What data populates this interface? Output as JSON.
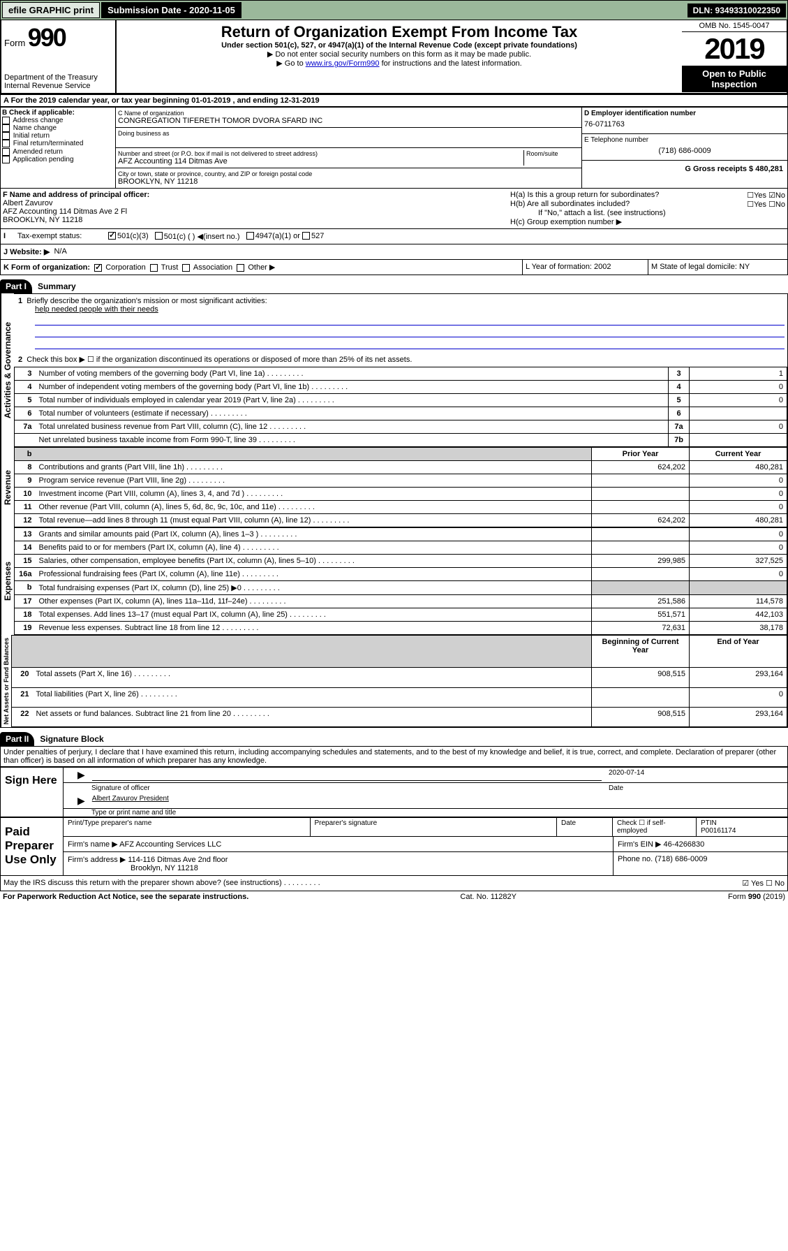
{
  "topbar": {
    "efile": "efile GRAPHIC print",
    "submission_label": "Submission Date - 2020-11-05",
    "dln": "DLN: 93493310022350"
  },
  "header": {
    "form_word": "Form",
    "form_num": "990",
    "dept": "Department of the Treasury",
    "irs": "Internal Revenue Service",
    "title": "Return of Organization Exempt From Income Tax",
    "subtitle": "Under section 501(c), 527, or 4947(a)(1) of the Internal Revenue Code (except private foundations)",
    "warn1": "▶ Do not enter social security numbers on this form as it may be made public.",
    "warn2_pre": "▶ Go to ",
    "warn2_link": "www.irs.gov/Form990",
    "warn2_post": " for instructions and the latest information.",
    "omb": "OMB No. 1545-0047",
    "year": "2019",
    "open": "Open to Public Inspection"
  },
  "lineA": "A For the 2019 calendar year, or tax year beginning 01-01-2019    , and ending 12-31-2019",
  "boxB": {
    "title": "B Check if applicable:",
    "items": [
      "Address change",
      "Name change",
      "Initial return",
      "Final return/terminated",
      "Amended return",
      "Application pending"
    ]
  },
  "boxC": {
    "name_label": "C Name of organization",
    "name": "CONGREGATION TIFERETH TOMOR DVORA SFARD INC",
    "dba_label": "Doing business as",
    "addr_label": "Number and street (or P.O. box if mail is not delivered to street address)",
    "room_label": "Room/suite",
    "addr": "AFZ Accounting 114 Ditmas Ave",
    "city_label": "City or town, state or province, country, and ZIP or foreign postal code",
    "city": "BROOKLYN, NY  11218"
  },
  "boxD": {
    "label": "D Employer identification number",
    "value": "76-0711763"
  },
  "boxE": {
    "label": "E Telephone number",
    "value": "(718) 686-0009"
  },
  "boxG": {
    "label": "G Gross receipts $ 480,281"
  },
  "boxF": {
    "label": "F  Name and address of principal officer:",
    "name": "Albert Zavurov",
    "addr1": "AFZ Accounting 114 Ditmas Ave 2 Fl",
    "addr2": "BROOKLYN, NY  11218"
  },
  "boxH": {
    "ha": "H(a)   Is this a group return for subordinates?",
    "hb": "H(b)   Are all subordinates included?",
    "hnote": "If \"No,\" attach a list. (see instructions)",
    "hc": "H(c)   Group exemption number ▶"
  },
  "lineI": {
    "label": "Tax-exempt status:",
    "opt1": "501(c)(3)",
    "opt2": "501(c) (   ) ◀(insert no.)",
    "opt3": "4947(a)(1) or",
    "opt4": "527"
  },
  "lineJ": {
    "label": "J    Website: ▶",
    "value": "N/A"
  },
  "lineK": {
    "label": "K Form of organization:",
    "opts": [
      "Corporation",
      "Trust",
      "Association",
      "Other ▶"
    ]
  },
  "lineL": {
    "label": "L Year of formation: 2002"
  },
  "lineM": {
    "label": "M State of legal domicile: NY"
  },
  "part1": {
    "header": "Part I",
    "title": "Summary",
    "q1": "Briefly describe the organization's mission or most significant activities:",
    "mission": "help needed people with their needs",
    "q2": "Check this box ▶ ☐  if the organization discontinued its operations or disposed of more than 25% of its net assets.",
    "rows_gov": [
      {
        "n": "3",
        "t": "Number of voting members of the governing body (Part VI, line 1a)",
        "l": "3",
        "v": "1"
      },
      {
        "n": "4",
        "t": "Number of independent voting members of the governing body (Part VI, line 1b)",
        "l": "4",
        "v": "0"
      },
      {
        "n": "5",
        "t": "Total number of individuals employed in calendar year 2019 (Part V, line 2a)",
        "l": "5",
        "v": "0"
      },
      {
        "n": "6",
        "t": "Total number of volunteers (estimate if necessary)",
        "l": "6",
        "v": ""
      },
      {
        "n": "7a",
        "t": "Total unrelated business revenue from Part VIII, column (C), line 12",
        "l": "7a",
        "v": "0"
      },
      {
        "n": "",
        "t": "Net unrelated business taxable income from Form 990-T, line 39",
        "l": "7b",
        "v": ""
      }
    ],
    "py_header": "Prior Year",
    "cy_header": "Current Year",
    "rows_rev": [
      {
        "n": "8",
        "t": "Contributions and grants (Part VIII, line 1h)",
        "py": "624,202",
        "cy": "480,281"
      },
      {
        "n": "9",
        "t": "Program service revenue (Part VIII, line 2g)",
        "py": "",
        "cy": "0"
      },
      {
        "n": "10",
        "t": "Investment income (Part VIII, column (A), lines 3, 4, and 7d )",
        "py": "",
        "cy": "0"
      },
      {
        "n": "11",
        "t": "Other revenue (Part VIII, column (A), lines 5, 6d, 8c, 9c, 10c, and 11e)",
        "py": "",
        "cy": "0"
      },
      {
        "n": "12",
        "t": "Total revenue—add lines 8 through 11 (must equal Part VIII, column (A), line 12)",
        "py": "624,202",
        "cy": "480,281"
      }
    ],
    "rows_exp": [
      {
        "n": "13",
        "t": "Grants and similar amounts paid (Part IX, column (A), lines 1–3 )",
        "py": "",
        "cy": "0"
      },
      {
        "n": "14",
        "t": "Benefits paid to or for members (Part IX, column (A), line 4)",
        "py": "",
        "cy": "0"
      },
      {
        "n": "15",
        "t": "Salaries, other compensation, employee benefits (Part IX, column (A), lines 5–10)",
        "py": "299,985",
        "cy": "327,525"
      },
      {
        "n": "16a",
        "t": "Professional fundraising fees (Part IX, column (A), line 11e)",
        "py": "",
        "cy": "0"
      },
      {
        "n": "b",
        "t": "Total fundraising expenses (Part IX, column (D), line 25) ▶0",
        "py": "GREY",
        "cy": "GREY"
      },
      {
        "n": "17",
        "t": "Other expenses (Part IX, column (A), lines 11a–11d, 11f–24e)",
        "py": "251,586",
        "cy": "114,578"
      },
      {
        "n": "18",
        "t": "Total expenses. Add lines 13–17 (must equal Part IX, column (A), line 25)",
        "py": "551,571",
        "cy": "442,103"
      },
      {
        "n": "19",
        "t": "Revenue less expenses. Subtract line 18 from line 12",
        "py": "72,631",
        "cy": "38,178"
      }
    ],
    "bcy_header": "Beginning of Current Year",
    "eoy_header": "End of Year",
    "rows_net": [
      {
        "n": "20",
        "t": "Total assets (Part X, line 16)",
        "py": "908,515",
        "cy": "293,164"
      },
      {
        "n": "21",
        "t": "Total liabilities (Part X, line 26)",
        "py": "",
        "cy": "0"
      },
      {
        "n": "22",
        "t": "Net assets or fund balances. Subtract line 21 from line 20",
        "py": "908,515",
        "cy": "293,164"
      }
    ]
  },
  "part2": {
    "header": "Part II",
    "title": "Signature Block",
    "perjury": "Under penalties of perjury, I declare that I have examined this return, including accompanying schedules and statements, and to the best of my knowledge and belief, it is true, correct, and complete. Declaration of preparer (other than officer) is based on all information of which preparer has any knowledge.",
    "sign_here": "Sign Here",
    "sig_officer": "Signature of officer",
    "date_label": "Date",
    "date_val": "2020-07-14",
    "officer_name": "Albert Zavurov  President",
    "type_name": "Type or print name and title",
    "paid": "Paid Preparer Use Only",
    "prep_name_label": "Print/Type preparer's name",
    "prep_sig_label": "Preparer's signature",
    "check_self": "Check ☐ if self-employed",
    "ptin_label": "PTIN",
    "ptin": "P00161174",
    "firm_name_label": "Firm's name    ▶",
    "firm_name": "AFZ Accounting Services LLC",
    "firm_ein": "Firm's EIN ▶ 46-4266830",
    "firm_addr_label": "Firm's address ▶",
    "firm_addr1": "114-116 Ditmas Ave 2nd floor",
    "firm_addr2": "Brooklyn, NY  11218",
    "phone": "Phone no. (718) 686-0009",
    "discuss": "May the IRS discuss this return with the preparer shown above? (see instructions)"
  },
  "footer": {
    "pra": "For Paperwork Reduction Act Notice, see the separate instructions.",
    "cat": "Cat. No. 11282Y",
    "form": "Form 990 (2019)"
  },
  "labels": {
    "gov": "Activities & Governance",
    "rev": "Revenue",
    "exp": "Expenses",
    "net": "Net Assets or Fund Balances"
  }
}
